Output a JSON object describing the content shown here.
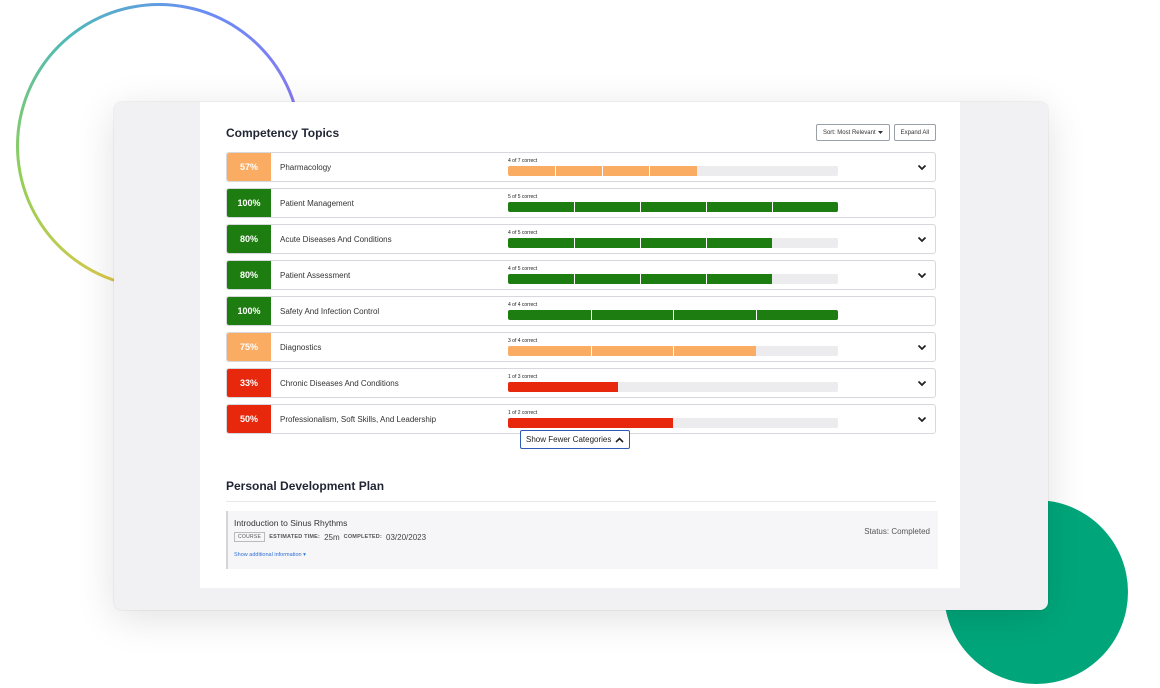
{
  "colors": {
    "green": "#1e7d10",
    "orange": "#fbac63",
    "red": "#e7280d"
  },
  "competency": {
    "title": "Competency Topics",
    "sort_label": "Sort: Most Relevant",
    "expand_label": "Expand All",
    "topics": [
      {
        "percent": "57%",
        "name": "Pharmacology",
        "correct": "4 of 7 correct",
        "status": "orange",
        "score": 4,
        "total": 7,
        "expandable": true
      },
      {
        "percent": "100%",
        "name": "Patient Management",
        "correct": "5 of 5 correct",
        "status": "green",
        "score": 5,
        "total": 5,
        "expandable": false
      },
      {
        "percent": "80%",
        "name": "Acute Diseases And Conditions",
        "correct": "4 of 5 correct",
        "status": "green",
        "score": 4,
        "total": 5,
        "expandable": true
      },
      {
        "percent": "80%",
        "name": "Patient Assessment",
        "correct": "4 of 5 correct",
        "status": "green",
        "score": 4,
        "total": 5,
        "expandable": true
      },
      {
        "percent": "100%",
        "name": "Safety And Infection Control",
        "correct": "4 of 4 correct",
        "status": "green",
        "score": 4,
        "total": 4,
        "expandable": false
      },
      {
        "percent": "75%",
        "name": "Diagnostics",
        "correct": "3 of 4 correct",
        "status": "orange",
        "score": 3,
        "total": 4,
        "expandable": true
      },
      {
        "percent": "33%",
        "name": "Chronic Diseases And Conditions",
        "correct": "1 of 3 correct",
        "status": "red",
        "score": 1,
        "total": 3,
        "expandable": true
      },
      {
        "percent": "50%",
        "name": "Professionalism, Soft Skills, And Leadership",
        "correct": "1 of 2 correct",
        "status": "red",
        "score": 1,
        "total": 2,
        "expandable": true
      }
    ],
    "show_fewer_label": "Show Fewer Categories"
  },
  "pdp": {
    "title": "Personal Development Plan",
    "course": {
      "title": "Introduction to Sinus Rhythms",
      "badge": "COURSE",
      "estimated_label": "ESTIMATED TIME:",
      "estimated_value": "25m",
      "completed_label": "COMPLETED:",
      "completed_value": "03/20/2023",
      "more_label": "Show additional information",
      "status": "Status: Completed"
    }
  }
}
